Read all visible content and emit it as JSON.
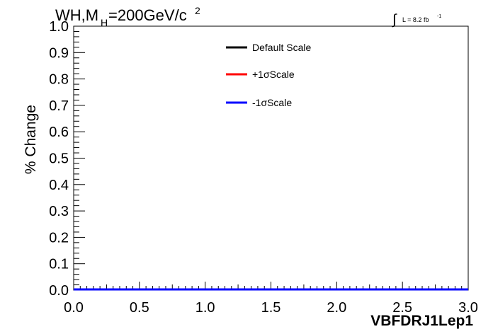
{
  "title": {
    "prefix": "WH,M",
    "subscript": "H",
    "middle": "=200GeV/c",
    "superscript": "2"
  },
  "luminosity": {
    "integral_symbol": "∫",
    "text": "L = 8.2 fb",
    "exponent": "-1"
  },
  "chart_data": {
    "type": "line",
    "xlabel": "VBFDRJ1Lep1",
    "ylabel": "% Change",
    "xlim": [
      0.0,
      3.0
    ],
    "ylim": [
      0.0,
      1.0
    ],
    "x_ticks": [
      "0.0",
      "0.5",
      "1.0",
      "1.5",
      "2.0",
      "2.5",
      "3.0"
    ],
    "y_ticks": [
      "0.0",
      "0.1",
      "0.2",
      "0.3",
      "0.4",
      "0.5",
      "0.6",
      "0.7",
      "0.8",
      "0.9",
      "1.0"
    ],
    "grid": false,
    "legend_position": "top-center",
    "series": [
      {
        "name": "Default Scale",
        "color": "#000000",
        "x": [
          0.0,
          3.0
        ],
        "y": [
          0.0,
          0.0
        ]
      },
      {
        "name": "+1σScale",
        "color": "#ff0000",
        "x": [
          0.0,
          3.0
        ],
        "y": [
          0.0,
          0.0
        ]
      },
      {
        "name": "-1σScale",
        "color": "#0000ff",
        "x": [
          0.0,
          3.0
        ],
        "y": [
          0.0,
          0.0
        ]
      }
    ]
  }
}
